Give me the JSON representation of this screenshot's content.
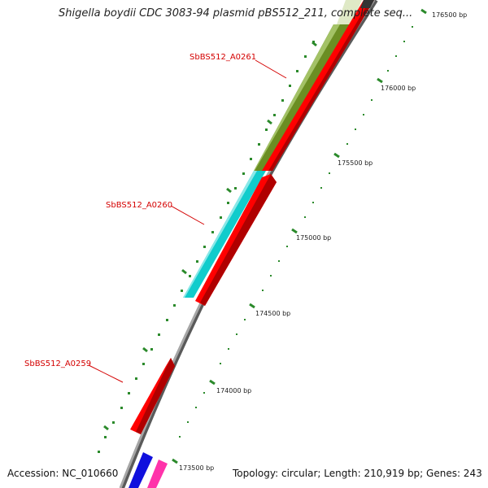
{
  "title": "Shigella boydii CDC 3083-94 plasmid pBS512_211, complete seq...",
  "accession": "Accession: NC_010660",
  "summary": "Topology: circular; Length: 210,919 bp; Genes: 243",
  "colors": {
    "gene_label": "#d40000",
    "tick": "#2b8a2b",
    "backbone": "#8a8a8a"
  },
  "ticks": [
    {
      "label": "176500 bp"
    },
    {
      "label": "176000 bp"
    },
    {
      "label": "175500 bp"
    },
    {
      "label": "175000 bp"
    },
    {
      "label": "174500 bp"
    },
    {
      "label": "174000 bp"
    },
    {
      "label": "173500 bp"
    }
  ],
  "genes": [
    {
      "label": "SbBS512_A0261",
      "color": "#6b8e23"
    },
    {
      "label": "SbBS512_A0260",
      "color": "#11cccc"
    },
    {
      "label": "SbBS512_A0259",
      "color": "#ff0000"
    }
  ]
}
